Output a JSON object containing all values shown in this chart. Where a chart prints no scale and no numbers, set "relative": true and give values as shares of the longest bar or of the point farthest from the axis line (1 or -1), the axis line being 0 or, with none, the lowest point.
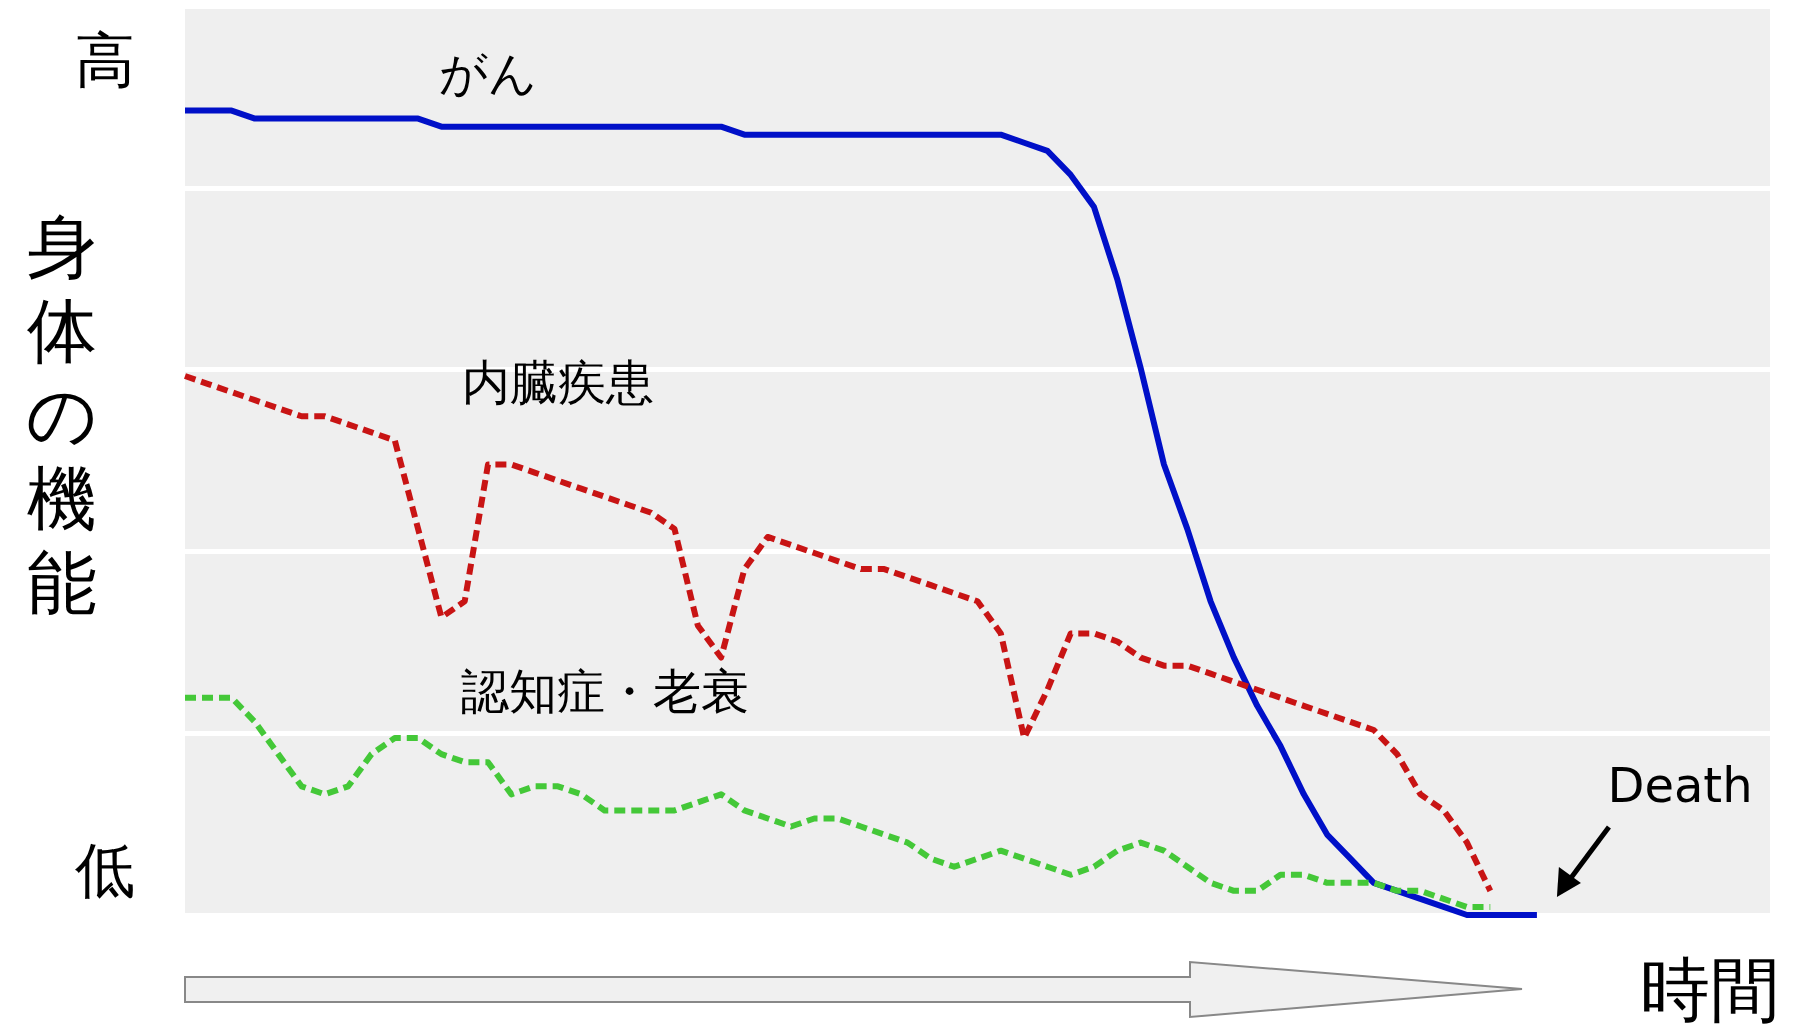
{
  "chart_data": {
    "type": "line",
    "relative": true,
    "ylabel": "身体の機能",
    "xlabel": "時間",
    "grid": "y",
    "marker": "none",
    "legend": false,
    "annotations": [
      "高",
      "低",
      "Death"
    ],
    "categories": [
      null,
      null,
      null,
      null,
      null,
      null,
      null,
      null,
      null,
      null,
      null,
      null,
      null,
      null,
      null,
      null,
      null,
      null,
      null,
      null,
      null,
      null,
      null,
      null,
      null,
      null,
      null,
      null,
      null,
      null,
      null,
      null,
      null,
      null,
      null,
      null,
      null,
      null,
      null,
      null,
      null,
      null,
      null,
      null,
      null,
      null,
      null,
      null,
      null,
      null,
      null,
      null,
      null,
      null,
      null,
      null,
      null,
      null,
      null,
      null,
      null,
      null,
      null,
      null,
      null,
      null,
      null,
      null,
      null
    ],
    "series": [
      {
        "name": "がん",
        "color": "#0010c8",
        "line_style": "solid",
        "values": [
          1.0,
          1.0,
          1.0,
          0.99,
          0.99,
          0.99,
          0.99,
          0.99,
          0.99,
          0.99,
          0.99,
          0.98,
          0.98,
          0.98,
          0.98,
          0.98,
          0.98,
          0.98,
          0.98,
          0.98,
          0.98,
          0.98,
          0.98,
          0.98,
          0.97,
          0.97,
          0.97,
          0.97,
          0.97,
          0.97,
          0.97,
          0.97,
          0.97,
          0.97,
          0.97,
          0.97,
          0.96,
          0.95,
          0.92,
          0.88,
          0.79,
          0.68,
          0.56,
          0.48,
          0.39,
          0.32,
          0.26,
          0.21,
          0.15,
          0.1,
          0.07,
          0.04,
          0.03,
          0.02,
          0.01,
          0,
          0,
          0,
          0,
          null,
          null,
          null,
          null,
          null,
          null,
          null,
          null,
          null,
          null
        ]
      },
      {
        "name": "内臓疾患",
        "color": "#c81414",
        "line_style": "dashed",
        "values": [
          0.67,
          0.66,
          0.65,
          0.64,
          0.63,
          0.62,
          0.62,
          0.61,
          0.6,
          0.59,
          0.48,
          0.37,
          0.39,
          0.56,
          0.56,
          0.55,
          0.54,
          0.53,
          0.52,
          0.51,
          0.5,
          0.48,
          0.36,
          0.32,
          0.43,
          0.47,
          0.46,
          0.45,
          0.44,
          0.43,
          0.43,
          0.42,
          0.41,
          0.4,
          0.39,
          0.35,
          0.22,
          0.28,
          0.35,
          0.35,
          0.34,
          0.32,
          0.31,
          0.31,
          0.3,
          0.29,
          0.28,
          0.27,
          0.26,
          0.25,
          0.24,
          0.23,
          0.2,
          0.15,
          0.13,
          0.09,
          0.03,
          null,
          null,
          null,
          null,
          null,
          null,
          null,
          null,
          null,
          null,
          null,
          null
        ]
      },
      {
        "name": "認知症・老衰",
        "color": "#44c838",
        "line_style": "dashed",
        "values": [
          0.27,
          0.27,
          0.27,
          0.24,
          0.2,
          0.16,
          0.15,
          0.16,
          0.2,
          0.22,
          0.22,
          0.2,
          0.19,
          0.19,
          0.15,
          0.16,
          0.16,
          0.15,
          0.13,
          0.13,
          0.13,
          0.13,
          0.14,
          0.15,
          0.13,
          0.12,
          0.11,
          0.12,
          0.12,
          0.11,
          0.1,
          0.09,
          0.07,
          0.06,
          0.07,
          0.08,
          0.07,
          0.06,
          0.05,
          0.06,
          0.08,
          0.09,
          0.08,
          0.06,
          0.04,
          0.03,
          0.03,
          0.05,
          0.05,
          0.04,
          0.04,
          0.04,
          0.03,
          0.03,
          0.02,
          0.01,
          0.01,
          null,
          null,
          null,
          null,
          null,
          null,
          null,
          null,
          null,
          null,
          null,
          null
        ]
      }
    ]
  }
}
